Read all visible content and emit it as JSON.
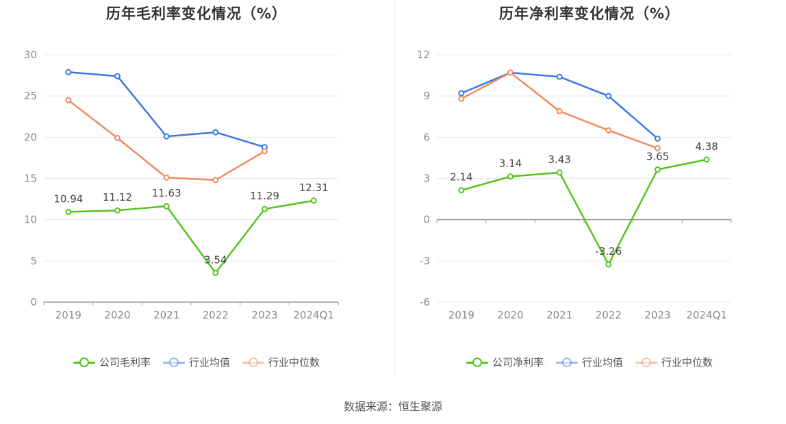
{
  "source": "数据来源：恒生聚源",
  "chart_data": [
    {
      "type": "line",
      "title": "历年毛利率变化情况（%）",
      "categories": [
        "2019",
        "2020",
        "2021",
        "2022",
        "2023",
        "2024Q1"
      ],
      "ylim": [
        0,
        30
      ],
      "yticks": [
        0,
        5,
        10,
        15,
        20,
        25,
        30
      ],
      "grid": true,
      "legend_position": "bottom",
      "series": [
        {
          "name": "公司毛利率",
          "color": "#52c41a",
          "labels": true,
          "values": [
            10.94,
            11.12,
            11.63,
            3.54,
            11.29,
            12.31
          ],
          "value_labels": [
            "10.94",
            "11.12",
            "11.63",
            "3.54",
            "11.29",
            "12.31"
          ]
        },
        {
          "name": "行业均值",
          "color": "#3a78e7",
          "labels": false,
          "values": [
            27.9,
            27.4,
            20.1,
            20.6,
            18.8,
            null
          ]
        },
        {
          "name": "行业中位数",
          "color": "#f08a5d",
          "labels": false,
          "values": [
            24.5,
            19.9,
            15.1,
            14.8,
            18.3,
            null
          ]
        }
      ]
    },
    {
      "type": "line",
      "title": "历年净利率变化情况（%）",
      "categories": [
        "2019",
        "2020",
        "2021",
        "2022",
        "2023",
        "2024Q1"
      ],
      "ylim": [
        -6,
        12
      ],
      "yticks": [
        -6,
        -3,
        0,
        3,
        6,
        9,
        12
      ],
      "grid": true,
      "legend_position": "bottom",
      "series": [
        {
          "name": "公司净利率",
          "color": "#52c41a",
          "labels": true,
          "values": [
            2.14,
            3.14,
            3.43,
            -3.26,
            3.65,
            4.38
          ],
          "value_labels": [
            "2.14",
            "3.14",
            "3.43",
            "-3.26",
            "3.65",
            "4.38"
          ]
        },
        {
          "name": "行业均值",
          "color": "#3a78e7",
          "labels": false,
          "values": [
            9.2,
            10.7,
            10.4,
            9.0,
            5.9,
            null
          ]
        },
        {
          "name": "行业中位数",
          "color": "#f08a5d",
          "labels": false,
          "values": [
            8.8,
            10.7,
            7.9,
            6.5,
            5.2,
            null
          ]
        }
      ]
    }
  ]
}
